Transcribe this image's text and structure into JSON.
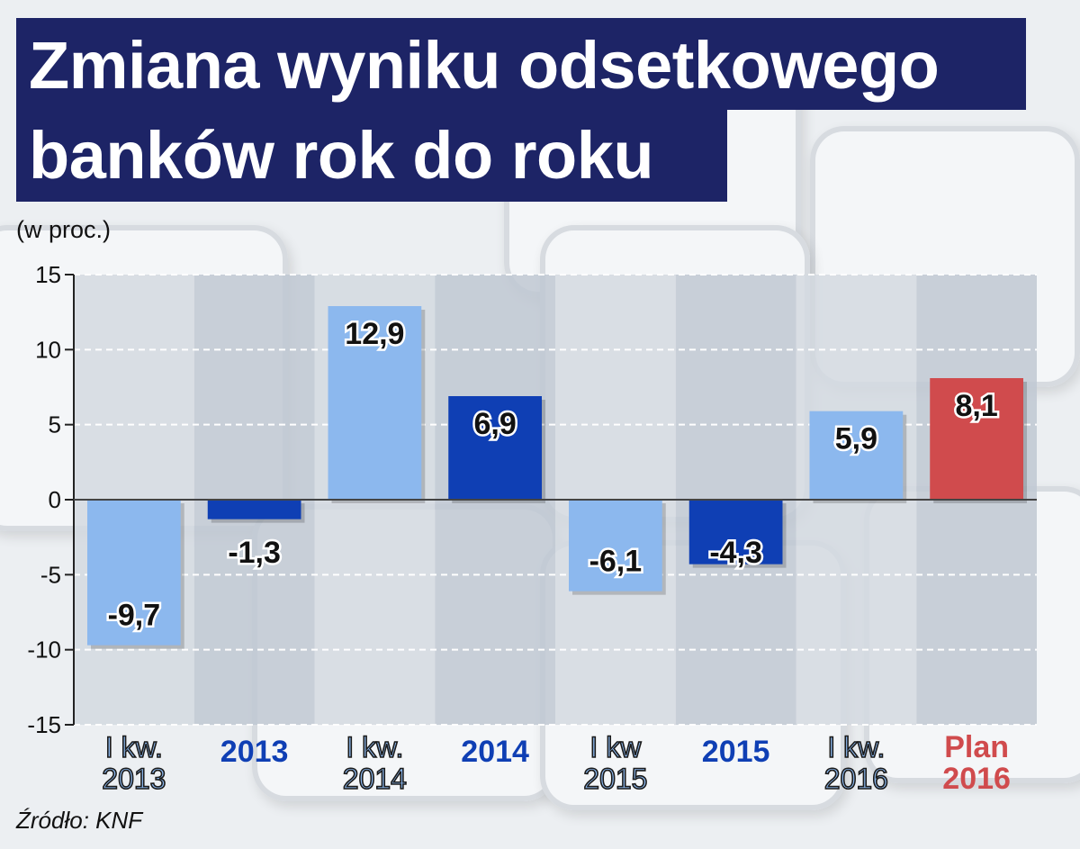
{
  "title": {
    "line1": "Zmiana wyniku odsetkowego",
    "line2": "banków rok do roku"
  },
  "unit_label": "(w proc.)",
  "source": "Źródło: KNF",
  "chart_data": {
    "type": "bar",
    "title": "Zmiana wyniku odsetkowego banków rok do roku",
    "ylabel": "(w proc.)",
    "ylim": [
      -15,
      15
    ],
    "yticks": [
      15,
      10,
      5,
      0,
      -5,
      -10,
      -15
    ],
    "grid": true,
    "categories": [
      [
        "I kw.",
        "2013"
      ],
      [
        "2013"
      ],
      [
        "I kw.",
        "2014"
      ],
      [
        "2014"
      ],
      [
        "I kw",
        "2015"
      ],
      [
        "2015"
      ],
      [
        "I kw.",
        "2016"
      ],
      [
        "Plan",
        "2016"
      ]
    ],
    "values": [
      -9.7,
      -1.3,
      12.9,
      6.9,
      -6.1,
      -4.3,
      5.9,
      8.1
    ],
    "value_labels": [
      "-9,7",
      "-1,3",
      "12,9",
      "6,9",
      "-6,1",
      "-4,3",
      "5,9",
      "8,1"
    ],
    "bar_colors": [
      "#8cb8ee",
      "#0f3fb4",
      "#8cb8ee",
      "#0f3fb4",
      "#8cb8ee",
      "#0f3fb4",
      "#8cb8ee",
      "#d04b4d"
    ],
    "label_styles": [
      "quarter",
      "year",
      "quarter",
      "year",
      "quarter",
      "year",
      "quarter",
      "plan"
    ],
    "colors": {
      "quarter_text": "#8cb8ee",
      "year_text": "#0f3fb4",
      "plan_text": "#d04b4d",
      "title_bg": "#1d2466"
    }
  }
}
